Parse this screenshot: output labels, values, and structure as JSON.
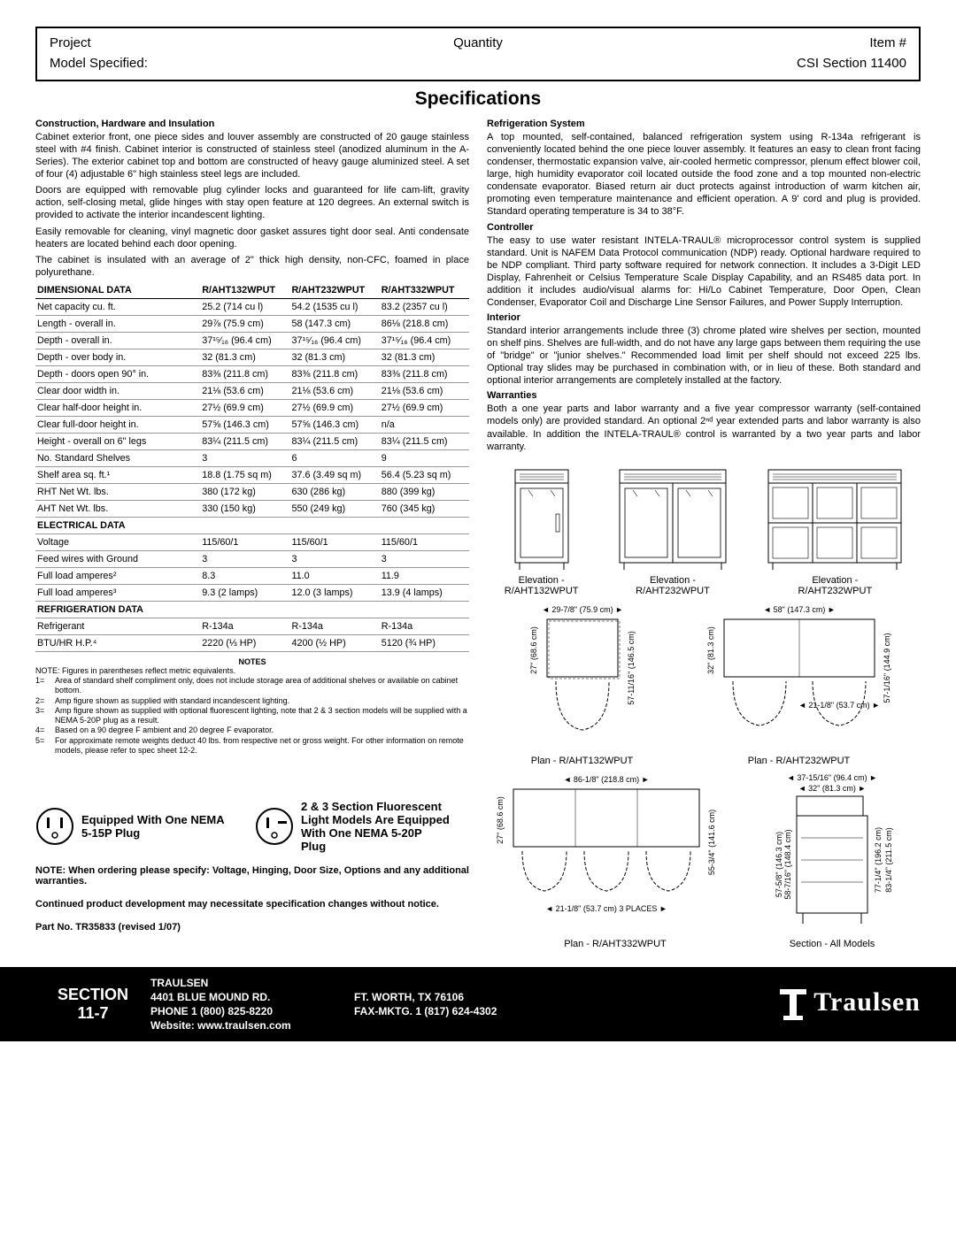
{
  "header": {
    "project": "Project",
    "quantity": "Quantity",
    "item": "Item #",
    "model": "Model Specified:",
    "csi": "CSI Section 11400"
  },
  "title": "Specifications",
  "left": {
    "h1": "Construction, Hardware and Insulation",
    "p1": "Cabinet exterior front, one piece sides and louver assembly are constructed of 20 gauge stainless steel with #4 finish. Cabinet interior is constructed of stainless steel (anodized aluminum in the A-Series). The exterior cabinet top and bottom are constructed of heavy gauge aluminized steel. A set of four (4) adjustable 6\" high stainless steel legs are included.",
    "p2": "Doors are equipped with removable plug cylinder locks and guaranteed for life cam-lift, gravity action, self-closing metal, glide hinges with stay open feature at 120 degrees.  An external switch is provided to activate the interior incandescent lighting.",
    "p3": "Easily removable for cleaning, vinyl magnetic door gasket assures tight door seal. Anti condensate heaters are located behind each door opening.",
    "p4": "The cabinet is insulated with an average of 2\" thick high density, non-CFC, foamed in place polyurethane."
  },
  "table": {
    "heads": [
      "DIMENSIONAL DATA",
      "R/AHT132WPUT",
      "R/AHT232WPUT",
      "R/AHT332WPUT"
    ],
    "dimRows": [
      [
        "Net capacity cu. ft.",
        "25.2 (714 cu l)",
        "54.2 (1535 cu l)",
        "83.2 (2357 cu l)"
      ],
      [
        "Length - overall in.",
        "29⅞ (75.9 cm)",
        "58 (147.3 cm)",
        "86⅛ (218.8 cm)"
      ],
      [
        "Depth - overall in.",
        "37¹⁵⁄₁₆ (96.4 cm)",
        "37¹⁵⁄₁₆ (96.4 cm)",
        "37¹⁵⁄₁₆ (96.4 cm)"
      ],
      [
        "Depth - over body in.",
        "32 (81.3 cm)",
        "32 (81.3 cm)",
        "32 (81.3 cm)"
      ],
      [
        "Depth - doors open 90° in.",
        "83⅜ (211.8 cm)",
        "83⅜ (211.8 cm)",
        "83⅜ (211.8 cm)"
      ],
      [
        "Clear door width in.",
        "21⅛ (53.6 cm)",
        "21⅛ (53.6 cm)",
        "21⅛ (53.6 cm)"
      ],
      [
        "Clear half-door height in.",
        "27½ (69.9 cm)",
        "27½ (69.9 cm)",
        "27½ (69.9 cm)"
      ],
      [
        "Clear full-door height in.",
        "57⅝ (146.3 cm)",
        "57⅝ (146.3 cm)",
        "n/a"
      ],
      [
        "Height - overall on 6\" legs",
        "83¼ (211.5 cm)",
        "83¼ (211.5 cm)",
        "83¼ (211.5 cm)"
      ],
      [
        "No. Standard Shelves",
        "3",
        "6",
        "9"
      ],
      [
        "Shelf area sq. ft.¹",
        "18.8 (1.75 sq m)",
        "37.6 (3.49 sq m)",
        "56.4 (5.23 sq m)"
      ],
      [
        "RHT Net Wt. lbs.",
        "380 (172 kg)",
        "630 (286 kg)",
        "880 (399 kg)"
      ],
      [
        "AHT Net Wt. lbs.",
        "330 (150 kg)",
        "550 (249 kg)",
        "760 (345 kg)"
      ]
    ],
    "elecHead": "ELECTRICAL DATA",
    "elecRows": [
      [
        "Voltage",
        "115/60/1",
        "115/60/1",
        "115/60/1"
      ],
      [
        "Feed wires with Ground",
        "3",
        "3",
        "3"
      ],
      [
        "Full load amperes²",
        "8.3",
        "11.0",
        "11.9"
      ],
      [
        "Full load amperes³",
        "9.3 (2 lamps)",
        "12.0 (3 lamps)",
        "13.9 (4 lamps)"
      ]
    ],
    "refHead": "REFRIGERATION DATA",
    "refRows": [
      [
        "Refrigerant",
        "R-134a",
        "R-134a",
        "R-134a"
      ],
      [
        "BTU/HR H.P.⁴",
        "2220 (⅓ HP)",
        "4200 (½ HP)",
        "5120 (¾ HP)"
      ]
    ]
  },
  "notesH": "NOTES",
  "notesIntro": "NOTE: Figures in parentheses reflect metric equivalents.",
  "notes": [
    {
      "k": "1=",
      "v": "Area of standard shelf compliment only, does not include storage area of additional shelves or available on cabinet bottom."
    },
    {
      "k": "2=",
      "v": "Amp figure shown as supplied with standard incandescent lighting."
    },
    {
      "k": "3=",
      "v": "Amp figure shown as supplied with optional fluorescent lighting, note that 2 & 3 section models will be supplied with a NEMA 5-20P plug as a result."
    },
    {
      "k": "4=",
      "v": "Based on a 90 degree F ambient and 20 degree F evaporator."
    },
    {
      "k": "5=",
      "v": "For approximate remote weights deduct 40 lbs. from respective net or gross weight. For other information on remote models, please refer to spec sheet 12-2."
    }
  ],
  "right": {
    "h1": "Refrigeration System",
    "p1": "A top mounted, self-contained, balanced refrigeration system using R-134a refrigerant is conveniently located behind the one piece louver assembly.  It features an easy to clean front facing condenser, thermostatic expansion valve, air-cooled hermetic compressor, plenum effect blower coil, large, high humidity evaporator coil located outside the food zone and a top mounted non-electric condensate evaporator.  Biased return air duct protects against introduction of warm kitchen air, promoting even temperature maintenance and efficient operation.  A 9' cord and plug is provided.  Standard operating temperature is 34 to 38°F.",
    "h2": "Controller",
    "p2": "The easy to use water resistant  INTELA-TRAUL® microprocessor control system is supplied standard. Unit is NAFEM Data Protocol communication (NDP) ready.  Optional hardware required to be NDP compliant.  Third party software required for network connection.  It includes a 3-Digit LED Display, Fahrenheit or Celsius Temperature Scale Display Capability, and an RS485 data port.  In addition it includes audio/visual alarms for: Hi/Lo Cabinet Temperature, Door Open, Clean Condenser, Evaporator Coil and Discharge Line Sensor Failures, and Power Supply Interruption.",
    "h3": "Interior",
    "p3": "Standard interior arrangements include three (3) chrome plated wire shelves per section, mounted on shelf pins. Shelves are full-width, and do not have any large gaps between them requiring the use of \"bridge\" or \"junior shelves.\"  Recommended load limit per shelf should not exceed 225 lbs. Optional tray slides may be purchased in combination with, or in lieu of these.  Both standard and optional interior arrangements are completely installed at the factory.",
    "h4": "Warranties",
    "p4": "Both a one year parts and labor warranty and a five year compressor warranty (self-contained models only) are provided standard. An optional 2ⁿᵈ year extended parts and labor warranty is also available. In addition the INTELA-TRAUL® control is warranted by a two year parts and labor warranty."
  },
  "elev": {
    "e1a": "Elevation -",
    "e1b": "R/AHT132WPUT",
    "e2a": "Elevation -",
    "e2b": "R/AHT232WPUT",
    "e3a": "Elevation -",
    "e3b": "R/AHT232WPUT",
    "p1a": "Plan - R/AHT132WPUT",
    "p2a": "Plan - R/AHT232WPUT",
    "p3a": "Plan - R/AHT332WPUT",
    "sec": "Section - All Models",
    "d1": "29-7/8\" (75.9 cm)",
    "d2": "27\" (68.6 cm)",
    "d3": "57-11/16\" (146.5 cm)",
    "d4": "58\" (147.3 cm)",
    "d5": "32\" (81.3 cm)",
    "d6": "21-1/8\" (53.7 cm)",
    "d7": "57-1/16\" (144.9 cm)",
    "d8": "86-1/8\" (218.8 cm)",
    "d9": "55-3/4\" (141.6 cm)",
    "d10": "21-1/8\" (53.7 cm) 3 PLACES",
    "d11": "37-15/16\" (96.4 cm)",
    "d12": "32\" (81.3 cm)",
    "d13": "57-5/8\" (146.3 cm)",
    "d14": "58-7/16\" (148.4 cm)",
    "d15": "77-1/4\" (196.2 cm)",
    "d16": "83-1/4\" (211.5 cm)"
  },
  "plugs": {
    "p1": "Equipped With One NEMA 5-15P Plug",
    "p2": "2 & 3 Section Fluorescent Light Models Are Equipped With One NEMA 5-20P Plug"
  },
  "note2a": "NOTE: When ordering please specify: Voltage, Hinging, Door Size, Options and any additional warranties.",
  "note2b": "Continued product development may necessitate specification changes without notice.",
  "partno": "Part No. TR35833 (revised 1/07)",
  "footer": {
    "sec1": "SECTION",
    "sec2": "11-7",
    "brand": "TRAULSEN",
    "addr": "4401 BLUE MOUND RD.",
    "city": "FT. WORTH, TX 76106",
    "phone": "PHONE 1 (800) 825-8220",
    "fax": "FAX-MKTG. 1 (817) 624-4302",
    "web": "Website: www.traulsen.com",
    "logo": "Traulsen"
  }
}
